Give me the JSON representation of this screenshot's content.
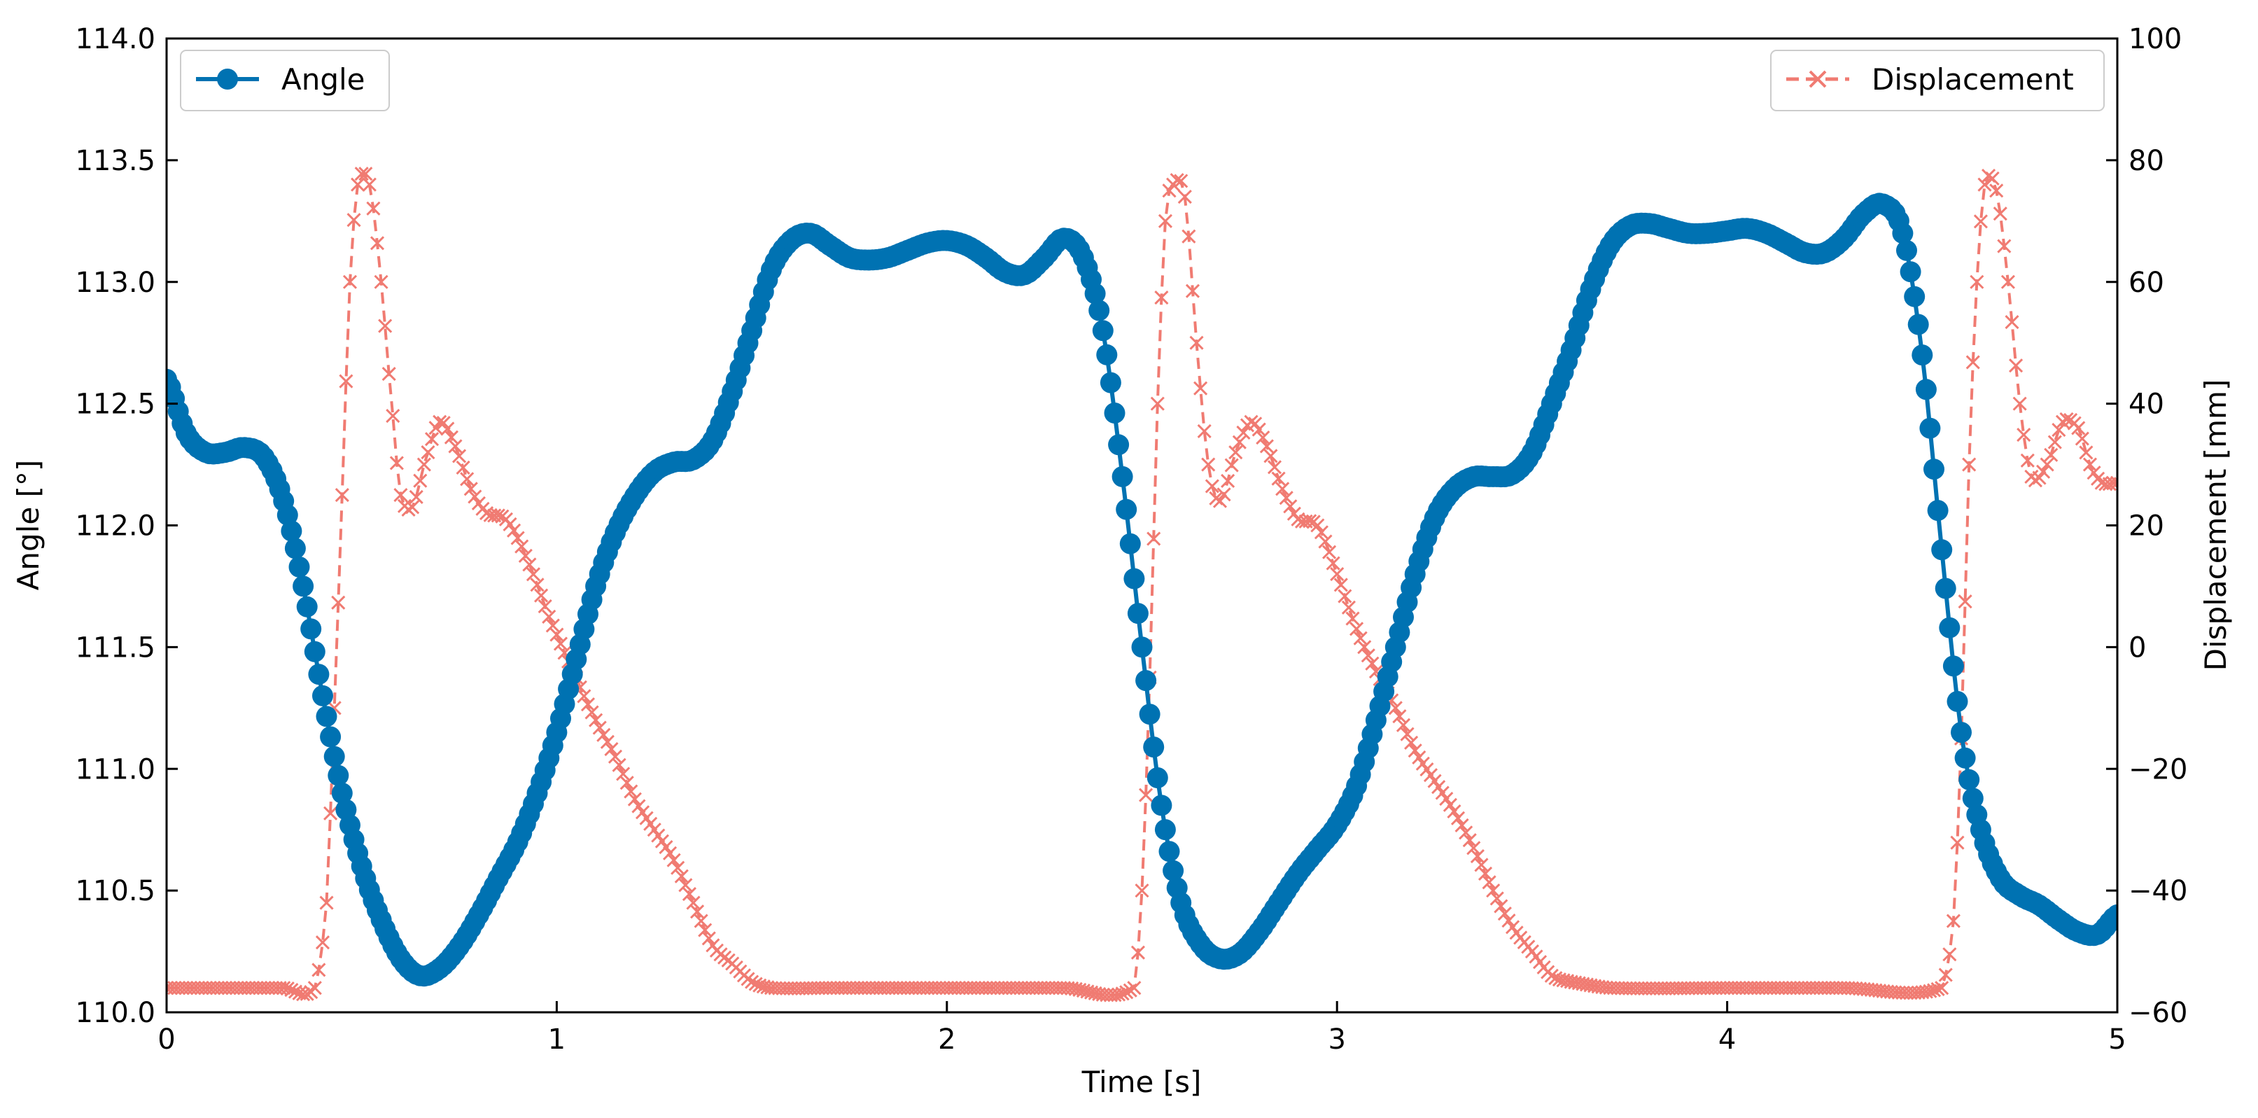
{
  "chart_data": {
    "type": "line",
    "title": "",
    "xlabel": "Time [s]",
    "ylabel_left": "Angle [°]",
    "ylabel_right": "Displacement [mm]",
    "xlim": [
      0,
      5
    ],
    "ylim_left": [
      110.0,
      114.0
    ],
    "ylim_right": [
      -60,
      100
    ],
    "x_ticks": [
      "0",
      "1",
      "2",
      "3",
      "4",
      "5"
    ],
    "x_tick_values": [
      0,
      1,
      2,
      3,
      4,
      5
    ],
    "y_left_ticks": [
      "110.0",
      "110.5",
      "111.0",
      "111.5",
      "112.0",
      "112.5",
      "113.0",
      "113.5",
      "114.0"
    ],
    "y_left_tick_values": [
      110.0,
      110.5,
      111.0,
      111.5,
      112.0,
      112.5,
      113.0,
      113.5,
      114.0
    ],
    "y_right_ticks": [
      "−60",
      "−40",
      "−20",
      "0",
      "20",
      "40",
      "60",
      "80",
      "100"
    ],
    "y_right_tick_values": [
      -60,
      -40,
      -20,
      0,
      20,
      40,
      60,
      80,
      100
    ],
    "grid": false,
    "series": [
      {
        "name": "Angle",
        "axis": "left",
        "color": "#0072b2",
        "marker": "circle",
        "linestyle": "solid",
        "legend_position": "top-left",
        "points": [
          [
            0.0,
            112.6
          ],
          [
            0.05,
            112.38
          ],
          [
            0.1,
            112.3
          ],
          [
            0.15,
            112.3
          ],
          [
            0.2,
            112.32
          ],
          [
            0.25,
            112.28
          ],
          [
            0.3,
            112.1
          ],
          [
            0.35,
            111.75
          ],
          [
            0.4,
            111.3
          ],
          [
            0.45,
            110.9
          ],
          [
            0.5,
            110.6
          ],
          [
            0.55,
            110.38
          ],
          [
            0.6,
            110.22
          ],
          [
            0.65,
            110.15
          ],
          [
            0.7,
            110.18
          ],
          [
            0.75,
            110.27
          ],
          [
            0.8,
            110.4
          ],
          [
            0.85,
            110.55
          ],
          [
            0.9,
            110.7
          ],
          [
            0.95,
            110.9
          ],
          [
            1.0,
            111.15
          ],
          [
            1.05,
            111.45
          ],
          [
            1.1,
            111.75
          ],
          [
            1.15,
            111.97
          ],
          [
            1.2,
            112.12
          ],
          [
            1.25,
            112.22
          ],
          [
            1.3,
            112.26
          ],
          [
            1.35,
            112.27
          ],
          [
            1.4,
            112.35
          ],
          [
            1.45,
            112.55
          ],
          [
            1.5,
            112.8
          ],
          [
            1.55,
            113.05
          ],
          [
            1.6,
            113.17
          ],
          [
            1.65,
            113.2
          ],
          [
            1.7,
            113.15
          ],
          [
            1.75,
            113.1
          ],
          [
            1.8,
            113.09
          ],
          [
            1.85,
            113.1
          ],
          [
            1.9,
            113.13
          ],
          [
            1.95,
            113.16
          ],
          [
            2.0,
            113.17
          ],
          [
            2.05,
            113.15
          ],
          [
            2.1,
            113.1
          ],
          [
            2.15,
            113.04
          ],
          [
            2.2,
            113.03
          ],
          [
            2.25,
            113.1
          ],
          [
            2.3,
            113.18
          ],
          [
            2.35,
            113.1
          ],
          [
            2.4,
            112.8
          ],
          [
            2.45,
            112.2
          ],
          [
            2.5,
            111.5
          ],
          [
            2.55,
            110.85
          ],
          [
            2.6,
            110.45
          ],
          [
            2.65,
            110.28
          ],
          [
            2.7,
            110.22
          ],
          [
            2.75,
            110.24
          ],
          [
            2.8,
            110.33
          ],
          [
            2.85,
            110.45
          ],
          [
            2.9,
            110.57
          ],
          [
            2.95,
            110.67
          ],
          [
            3.0,
            110.77
          ],
          [
            3.05,
            110.93
          ],
          [
            3.1,
            111.2
          ],
          [
            3.15,
            111.5
          ],
          [
            3.2,
            111.8
          ],
          [
            3.25,
            112.03
          ],
          [
            3.3,
            112.15
          ],
          [
            3.35,
            112.2
          ],
          [
            3.4,
            112.2
          ],
          [
            3.45,
            112.21
          ],
          [
            3.5,
            112.3
          ],
          [
            3.55,
            112.5
          ],
          [
            3.6,
            112.72
          ],
          [
            3.65,
            112.97
          ],
          [
            3.7,
            113.15
          ],
          [
            3.75,
            113.23
          ],
          [
            3.8,
            113.24
          ],
          [
            3.85,
            113.22
          ],
          [
            3.9,
            113.2
          ],
          [
            3.95,
            113.2
          ],
          [
            4.0,
            113.21
          ],
          [
            4.05,
            113.22
          ],
          [
            4.1,
            113.2
          ],
          [
            4.15,
            113.16
          ],
          [
            4.2,
            113.12
          ],
          [
            4.25,
            113.12
          ],
          [
            4.3,
            113.18
          ],
          [
            4.35,
            113.28
          ],
          [
            4.4,
            113.32
          ],
          [
            4.45,
            113.2
          ],
          [
            4.5,
            112.7
          ],
          [
            4.55,
            111.9
          ],
          [
            4.6,
            111.15
          ],
          [
            4.65,
            110.75
          ],
          [
            4.7,
            110.55
          ],
          [
            4.75,
            110.48
          ],
          [
            4.8,
            110.44
          ],
          [
            4.85,
            110.38
          ],
          [
            4.9,
            110.33
          ],
          [
            4.95,
            110.32
          ],
          [
            5.0,
            110.4
          ]
        ]
      },
      {
        "name": "Displacement",
        "axis": "right",
        "color": "#f07b72",
        "marker": "x",
        "linestyle": "dashed",
        "legend_position": "top-right",
        "points": [
          [
            0.0,
            -56
          ],
          [
            0.1,
            -56
          ],
          [
            0.2,
            -56
          ],
          [
            0.3,
            -56
          ],
          [
            0.38,
            -56
          ],
          [
            0.41,
            -42
          ],
          [
            0.43,
            -10
          ],
          [
            0.45,
            25
          ],
          [
            0.47,
            60
          ],
          [
            0.49,
            76
          ],
          [
            0.52,
            76
          ],
          [
            0.55,
            60
          ],
          [
            0.58,
            38
          ],
          [
            0.6,
            25
          ],
          [
            0.63,
            23
          ],
          [
            0.66,
            30
          ],
          [
            0.7,
            37
          ],
          [
            0.74,
            33
          ],
          [
            0.78,
            26
          ],
          [
            0.82,
            22
          ],
          [
            0.87,
            21
          ],
          [
            0.92,
            15
          ],
          [
            0.98,
            5
          ],
          [
            1.05,
            -5
          ],
          [
            1.1,
            -12
          ],
          [
            1.15,
            -18
          ],
          [
            1.2,
            -25
          ],
          [
            1.25,
            -30
          ],
          [
            1.3,
            -35
          ],
          [
            1.35,
            -42
          ],
          [
            1.4,
            -49
          ],
          [
            1.45,
            -52
          ],
          [
            1.5,
            -55
          ],
          [
            1.55,
            -56
          ],
          [
            1.7,
            -56
          ],
          [
            2.0,
            -56
          ],
          [
            2.3,
            -56
          ],
          [
            2.48,
            -56
          ],
          [
            2.5,
            -40
          ],
          [
            2.52,
            -5
          ],
          [
            2.54,
            40
          ],
          [
            2.56,
            70
          ],
          [
            2.58,
            76
          ],
          [
            2.61,
            74
          ],
          [
            2.64,
            50
          ],
          [
            2.67,
            30
          ],
          [
            2.7,
            24
          ],
          [
            2.74,
            32
          ],
          [
            2.78,
            37
          ],
          [
            2.82,
            33
          ],
          [
            2.86,
            26
          ],
          [
            2.9,
            21
          ],
          [
            2.95,
            20
          ],
          [
            3.0,
            12
          ],
          [
            3.05,
            3
          ],
          [
            3.1,
            -4
          ],
          [
            3.15,
            -10
          ],
          [
            3.2,
            -17
          ],
          [
            3.25,
            -22
          ],
          [
            3.3,
            -27
          ],
          [
            3.35,
            -33
          ],
          [
            3.4,
            -40
          ],
          [
            3.45,
            -46
          ],
          [
            3.5,
            -50
          ],
          [
            3.55,
            -54
          ],
          [
            3.6,
            -55
          ],
          [
            3.7,
            -56
          ],
          [
            4.0,
            -56
          ],
          [
            4.3,
            -56
          ],
          [
            4.55,
            -56
          ],
          [
            4.58,
            -45
          ],
          [
            4.6,
            -15
          ],
          [
            4.62,
            30
          ],
          [
            4.64,
            60
          ],
          [
            4.66,
            76
          ],
          [
            4.69,
            75
          ],
          [
            4.72,
            60
          ],
          [
            4.75,
            40
          ],
          [
            4.78,
            28
          ],
          [
            4.82,
            30
          ],
          [
            4.86,
            37
          ],
          [
            4.9,
            36
          ],
          [
            4.93,
            30
          ],
          [
            4.96,
            27
          ],
          [
            5.0,
            27
          ]
        ]
      }
    ]
  }
}
